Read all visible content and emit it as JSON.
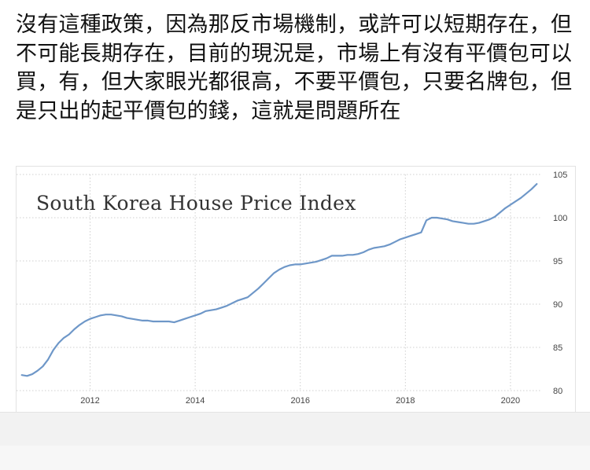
{
  "post": {
    "text": "沒有這種政策，因為那反市場機制，或許可以短期存在，但不可能長期存在，目前的現況是，市場上有沒有平價包可以買，有，但大家眼光都很高，不要平價包，只要名牌包，但是只出的起平價包的錢，這就是問題所在"
  },
  "colors": {
    "line": "#6e97c8",
    "grid": "#cfcfcf",
    "tick_text": "#444444"
  },
  "chart_data": {
    "type": "line",
    "title": "South Korea House Price Index",
    "xlabel": "",
    "ylabel": "",
    "xlim": [
      2010.6,
      2020.6
    ],
    "ylim": [
      80,
      105
    ],
    "x_ticks": [
      2012,
      2014,
      2016,
      2018,
      2020
    ],
    "y_ticks": [
      80,
      85,
      90,
      95,
      100,
      105
    ],
    "grid": "dotted",
    "x": [
      2010.7,
      2010.8,
      2010.9,
      2011.0,
      2011.1,
      2011.2,
      2011.3,
      2011.4,
      2011.5,
      2011.6,
      2011.7,
      2011.8,
      2011.9,
      2012.0,
      2012.1,
      2012.2,
      2012.3,
      2012.4,
      2012.5,
      2012.6,
      2012.7,
      2012.8,
      2012.9,
      2013.0,
      2013.1,
      2013.2,
      2013.3,
      2013.4,
      2013.5,
      2013.6,
      2013.7,
      2013.8,
      2013.9,
      2014.0,
      2014.1,
      2014.2,
      2014.3,
      2014.4,
      2014.5,
      2014.6,
      2014.7,
      2014.8,
      2014.9,
      2015.0,
      2015.1,
      2015.2,
      2015.3,
      2015.4,
      2015.5,
      2015.6,
      2015.7,
      2015.8,
      2015.9,
      2016.0,
      2016.1,
      2016.2,
      2016.3,
      2016.4,
      2016.5,
      2016.6,
      2016.7,
      2016.8,
      2016.9,
      2017.0,
      2017.1,
      2017.2,
      2017.3,
      2017.4,
      2017.5,
      2017.6,
      2017.7,
      2017.8,
      2017.9,
      2018.0,
      2018.1,
      2018.2,
      2018.3,
      2018.4,
      2018.5,
      2018.6,
      2018.7,
      2018.8,
      2018.9,
      2019.0,
      2019.1,
      2019.2,
      2019.3,
      2019.4,
      2019.5,
      2019.6,
      2019.7,
      2019.8,
      2019.9,
      2020.0,
      2020.1,
      2020.2,
      2020.3,
      2020.4,
      2020.5
    ],
    "series": [
      {
        "values": [
          81.8,
          81.7,
          81.9,
          82.3,
          82.8,
          83.6,
          84.7,
          85.5,
          86.1,
          86.5,
          87.1,
          87.6,
          88.0,
          88.3,
          88.5,
          88.7,
          88.8,
          88.8,
          88.7,
          88.6,
          88.4,
          88.3,
          88.2,
          88.1,
          88.1,
          88.0,
          88.0,
          88.0,
          88.0,
          87.9,
          88.1,
          88.3,
          88.5,
          88.7,
          88.9,
          89.2,
          89.3,
          89.4,
          89.6,
          89.8,
          90.1,
          90.4,
          90.6,
          90.8,
          91.3,
          91.8,
          92.4,
          93.0,
          93.6,
          94.0,
          94.3,
          94.5,
          94.6,
          94.6,
          94.7,
          94.8,
          94.9,
          95.1,
          95.3,
          95.6,
          95.6,
          95.6,
          95.7,
          95.7,
          95.8,
          96.0,
          96.3,
          96.5,
          96.6,
          96.7,
          96.9,
          97.2,
          97.5,
          97.7,
          97.9,
          98.1,
          98.3,
          99.7,
          100.0,
          100.0,
          99.9,
          99.8,
          99.6,
          99.5,
          99.4,
          99.3,
          99.3,
          99.4,
          99.6,
          99.8,
          100.1,
          100.6,
          101.1,
          101.5,
          101.9,
          102.3,
          102.8,
          103.3,
          103.9
        ]
      }
    ]
  }
}
